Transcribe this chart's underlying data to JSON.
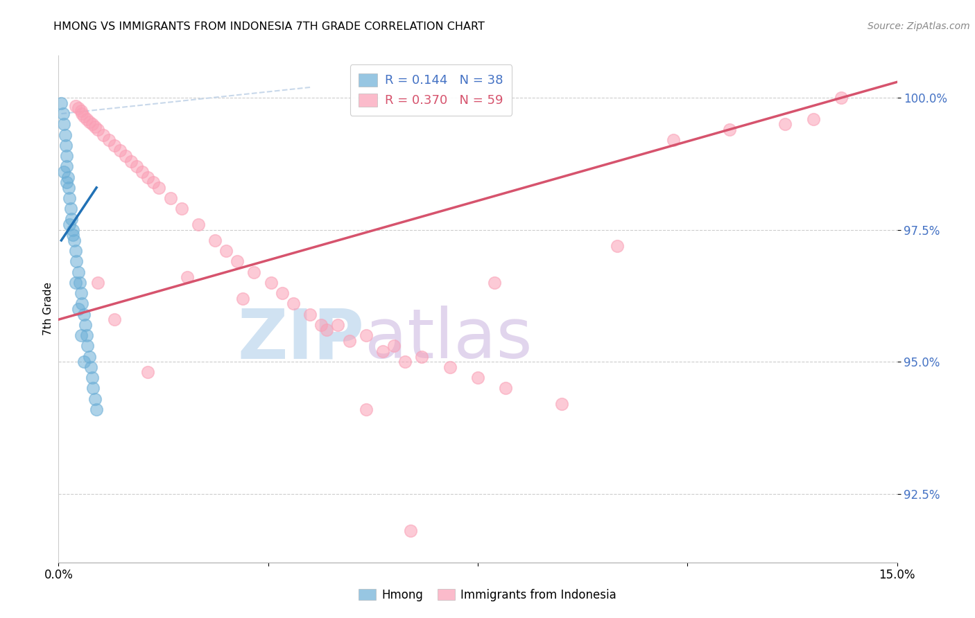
{
  "title": "HMONG VS IMMIGRANTS FROM INDONESIA 7TH GRADE CORRELATION CHART",
  "source": "Source: ZipAtlas.com",
  "ylabel": "7th Grade",
  "xmin": 0.0,
  "xmax": 15.0,
  "ymin": 91.2,
  "ymax": 100.8,
  "yticks": [
    92.5,
    95.0,
    97.5,
    100.0
  ],
  "ytick_labels": [
    "92.5%",
    "95.0%",
    "97.5%",
    "100.0%"
  ],
  "xticks": [
    0.0,
    3.75,
    7.5,
    11.25,
    15.0
  ],
  "xtick_labels": [
    "0.0%",
    "",
    "",
    "",
    "15.0%"
  ],
  "legend_R_blue": "R = 0.144",
  "legend_N_blue": "N = 38",
  "legend_R_pink": "R = 0.370",
  "legend_N_pink": "N = 59",
  "blue_color": "#6baed6",
  "pink_color": "#fa9fb5",
  "blue_line_color": "#2171b5",
  "pink_line_color": "#d6536d",
  "dashed_line_color": "#c8d8ea",
  "watermark_zip": "ZIP",
  "watermark_atlas": "atlas",
  "hmong_x": [
    0.05,
    0.08,
    0.1,
    0.12,
    0.13,
    0.14,
    0.15,
    0.17,
    0.18,
    0.2,
    0.22,
    0.23,
    0.25,
    0.28,
    0.3,
    0.32,
    0.35,
    0.38,
    0.4,
    0.42,
    0.45,
    0.48,
    0.5,
    0.52,
    0.55,
    0.58,
    0.6,
    0.62,
    0.65,
    0.68,
    0.1,
    0.15,
    0.2,
    0.25,
    0.3,
    0.35,
    0.4,
    0.45
  ],
  "hmong_y": [
    99.9,
    99.7,
    99.5,
    99.3,
    99.1,
    98.9,
    98.7,
    98.5,
    98.3,
    98.1,
    97.9,
    97.7,
    97.5,
    97.3,
    97.1,
    96.9,
    96.7,
    96.5,
    96.3,
    96.1,
    95.9,
    95.7,
    95.5,
    95.3,
    95.1,
    94.9,
    94.7,
    94.5,
    94.3,
    94.1,
    98.6,
    98.4,
    97.6,
    97.4,
    96.5,
    96.0,
    95.5,
    95.0
  ],
  "indonesia_x": [
    0.3,
    0.35,
    0.4,
    0.42,
    0.45,
    0.5,
    0.55,
    0.6,
    0.65,
    0.7,
    0.8,
    0.9,
    1.0,
    1.1,
    1.2,
    1.3,
    1.4,
    1.5,
    1.6,
    1.7,
    1.8,
    2.0,
    2.2,
    2.5,
    2.8,
    3.0,
    3.2,
    3.5,
    3.8,
    4.0,
    4.2,
    4.5,
    5.0,
    5.5,
    6.0,
    6.5,
    7.0,
    7.5,
    8.0,
    9.0,
    10.0,
    11.0,
    12.0,
    13.0,
    13.5,
    14.0,
    4.8,
    5.2,
    5.8,
    6.2,
    0.7,
    1.0,
    1.6,
    2.3,
    3.3,
    4.7,
    7.8,
    5.5,
    6.3
  ],
  "indonesia_y": [
    99.85,
    99.8,
    99.75,
    99.7,
    99.65,
    99.6,
    99.55,
    99.5,
    99.45,
    99.4,
    99.3,
    99.2,
    99.1,
    99.0,
    98.9,
    98.8,
    98.7,
    98.6,
    98.5,
    98.4,
    98.3,
    98.1,
    97.9,
    97.6,
    97.3,
    97.1,
    96.9,
    96.7,
    96.5,
    96.3,
    96.1,
    95.9,
    95.7,
    95.5,
    95.3,
    95.1,
    94.9,
    94.7,
    94.5,
    94.2,
    97.2,
    99.2,
    99.4,
    99.5,
    99.6,
    100.0,
    95.6,
    95.4,
    95.2,
    95.0,
    96.5,
    95.8,
    94.8,
    96.6,
    96.2,
    95.7,
    96.5,
    94.1,
    91.8
  ],
  "blue_line_x": [
    0.05,
    0.68
  ],
  "blue_line_y": [
    97.3,
    98.3
  ],
  "pink_line_x": [
    0.0,
    15.0
  ],
  "pink_line_y": [
    95.8,
    100.3
  ],
  "dashed_line_x": [
    0.05,
    4.5
  ],
  "dashed_line_y": [
    99.7,
    100.2
  ]
}
